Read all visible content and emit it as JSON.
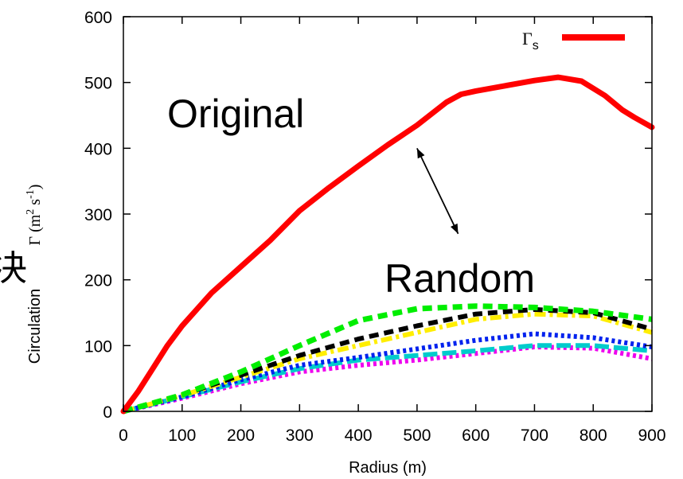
{
  "chart_data": {
    "type": "line",
    "xlabel": "Radius (m)",
    "ylabel_prefix": "Circulation",
    "ylabel_symbol": "Γ (m",
    "ylabel_sup1": "2",
    "ylabel_mid": " s",
    "ylabel_sup2": "-1",
    "ylabel_end": ")",
    "side_glyph": "决",
    "xlim": [
      0,
      900
    ],
    "ylim": [
      0,
      600
    ],
    "xticks": [
      0,
      100,
      200,
      300,
      400,
      500,
      600,
      700,
      800,
      900
    ],
    "yticks": [
      0,
      100,
      200,
      300,
      400,
      500,
      600
    ],
    "legend": {
      "symbol": "Γ",
      "subscript": "s",
      "placement": "top-right"
    },
    "annotations": [
      {
        "text": "Original",
        "x": 75,
        "y": 450
      },
      {
        "text": "Random",
        "x": 440,
        "y": 200
      }
    ],
    "arrow": {
      "from": [
        500,
        400
      ],
      "to": [
        570,
        270
      ]
    },
    "series": [
      {
        "name": "Γs",
        "color": "#ff0000",
        "style": "solid",
        "width": 7,
        "x": [
          0,
          25,
          50,
          75,
          100,
          150,
          200,
          250,
          300,
          350,
          400,
          450,
          500,
          550,
          575,
          600,
          650,
          700,
          740,
          780,
          820,
          850,
          870,
          900
        ],
        "y": [
          0,
          30,
          65,
          100,
          130,
          180,
          220,
          260,
          305,
          340,
          373,
          405,
          435,
          470,
          482,
          487,
          495,
          503,
          508,
          502,
          480,
          458,
          447,
          432
        ]
      },
      {
        "color": "#00ee00",
        "style": "dash",
        "width": 7,
        "x": [
          0,
          100,
          200,
          300,
          400,
          500,
          600,
          700,
          800,
          900
        ],
        "y": [
          0,
          25,
          60,
          100,
          138,
          156,
          160,
          158,
          152,
          140
        ]
      },
      {
        "color": "#000000",
        "style": "dash",
        "width": 6,
        "x": [
          0,
          100,
          200,
          300,
          400,
          500,
          600,
          700,
          800,
          900
        ],
        "y": [
          0,
          25,
          55,
          85,
          110,
          130,
          148,
          155,
          150,
          125
        ]
      },
      {
        "color": "#ffee00",
        "style": "dashdot",
        "width": 6,
        "x": [
          0,
          100,
          200,
          300,
          400,
          500,
          600,
          700,
          800,
          900
        ],
        "y": [
          0,
          24,
          52,
          80,
          100,
          120,
          140,
          148,
          145,
          120
        ]
      },
      {
        "color": "#0022ee",
        "style": "dot",
        "width": 6,
        "x": [
          0,
          100,
          200,
          300,
          400,
          500,
          600,
          700,
          800,
          900
        ],
        "y": [
          0,
          22,
          48,
          70,
          82,
          95,
          108,
          118,
          112,
          98
        ]
      },
      {
        "color": "#00cccc",
        "style": "dashlong",
        "width": 6,
        "x": [
          0,
          100,
          200,
          300,
          400,
          500,
          600,
          700,
          800,
          900
        ],
        "y": [
          0,
          22,
          45,
          65,
          78,
          85,
          92,
          100,
          100,
          92
        ]
      },
      {
        "color": "#ee00ee",
        "style": "dot",
        "width": 6,
        "x": [
          0,
          100,
          200,
          300,
          400,
          500,
          600,
          700,
          800,
          900
        ],
        "y": [
          0,
          20,
          42,
          60,
          70,
          78,
          88,
          98,
          96,
          80
        ]
      }
    ]
  }
}
